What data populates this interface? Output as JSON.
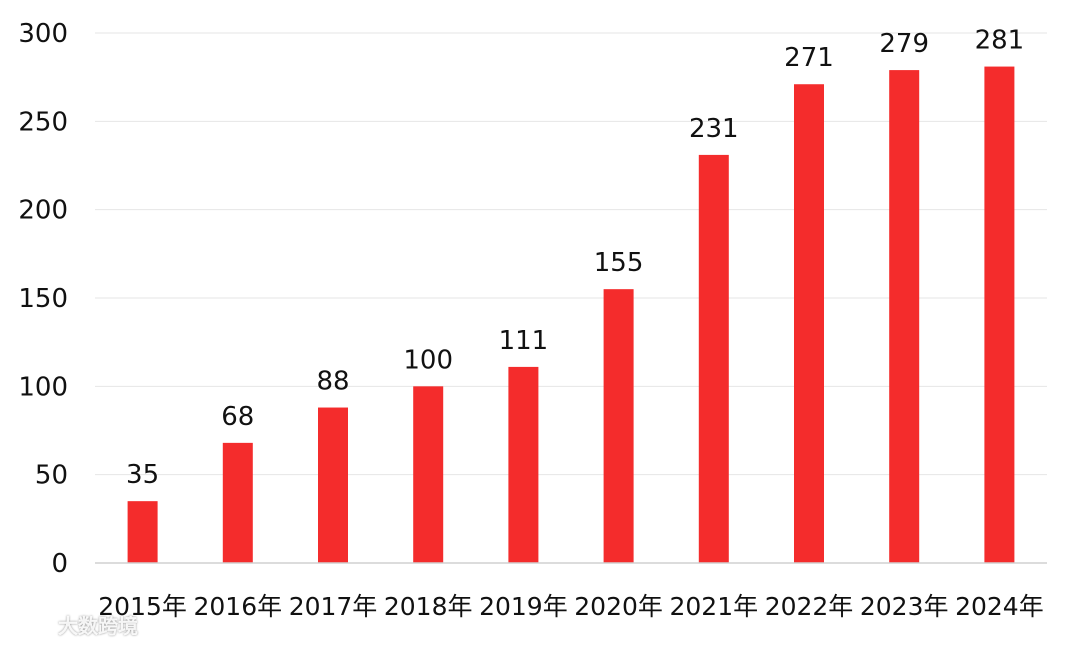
{
  "colors": {
    "bar": "#f42c2c",
    "grid": "#e6e6e6",
    "text": "#111111"
  },
  "watermark": {
    "text": "大数跨境",
    "icon": "logo-icon"
  },
  "chart_data": {
    "type": "bar",
    "categories": [
      "2015年",
      "2016年",
      "2017年",
      "2018年",
      "2019年",
      "2020年",
      "2021年",
      "2022年",
      "2023年",
      "2024年"
    ],
    "series": [
      {
        "values": [
          35,
          68,
          88,
          100,
          111,
          155,
          231,
          271,
          279,
          281
        ]
      }
    ],
    "ylim": [
      0,
      300
    ],
    "yticks": [
      0,
      50,
      100,
      150,
      200,
      250,
      300
    ],
    "title": "",
    "xlabel": "",
    "ylabel": "",
    "grid": true,
    "legend": "none",
    "data_labels": true
  }
}
